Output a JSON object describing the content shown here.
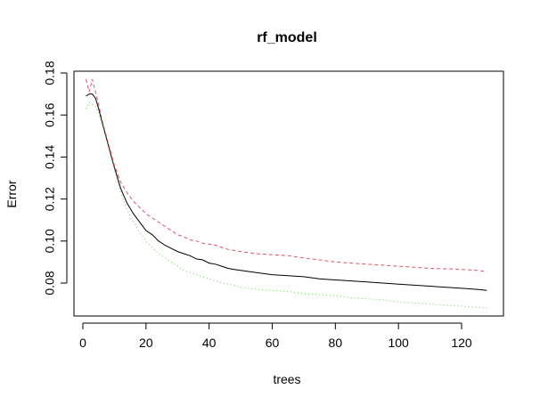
{
  "chart_data": {
    "type": "line",
    "title": "rf_model",
    "xlabel": "trees",
    "ylabel": "Error",
    "xlim": [
      0,
      128
    ],
    "ylim": [
      0.065,
      0.18
    ],
    "x_ticks": [
      0,
      20,
      40,
      60,
      80,
      100,
      120
    ],
    "y_ticks": [
      0.08,
      0.1,
      0.12,
      0.14,
      0.16,
      0.18
    ],
    "y_tick_labels": [
      "0.08",
      "0.10",
      "0.12",
      "0.14",
      "0.16",
      "0.18"
    ],
    "grid": false,
    "legend": "none",
    "series": [
      {
        "line_style": "solid",
        "color": "#000000",
        "points": [
          [
            1,
            0.169
          ],
          [
            2,
            0.17
          ],
          [
            3,
            0.17
          ],
          [
            4,
            0.168
          ],
          [
            5,
            0.163
          ],
          [
            6,
            0.157
          ],
          [
            8,
            0.146
          ],
          [
            10,
            0.135
          ],
          [
            12,
            0.125
          ],
          [
            14,
            0.118
          ],
          [
            16,
            0.113
          ],
          [
            18,
            0.109
          ],
          [
            20,
            0.105
          ],
          [
            22,
            0.103
          ],
          [
            24,
            0.1
          ],
          [
            26,
            0.098
          ],
          [
            28,
            0.0965
          ],
          [
            30,
            0.095
          ],
          [
            32,
            0.094
          ],
          [
            34,
            0.093
          ],
          [
            36,
            0.0915
          ],
          [
            38,
            0.091
          ],
          [
            40,
            0.0895
          ],
          [
            42,
            0.089
          ],
          [
            44,
            0.088
          ],
          [
            46,
            0.087
          ],
          [
            48,
            0.0865
          ],
          [
            50,
            0.086
          ],
          [
            55,
            0.085
          ],
          [
            60,
            0.084
          ],
          [
            65,
            0.0835
          ],
          [
            70,
            0.083
          ],
          [
            75,
            0.082
          ],
          [
            80,
            0.0815
          ],
          [
            85,
            0.081
          ],
          [
            90,
            0.0805
          ],
          [
            95,
            0.08
          ],
          [
            100,
            0.0795
          ],
          [
            105,
            0.079
          ],
          [
            110,
            0.0785
          ],
          [
            115,
            0.078
          ],
          [
            120,
            0.0775
          ],
          [
            125,
            0.077
          ],
          [
            128,
            0.0765
          ]
        ]
      },
      {
        "line_style": "dashed",
        "color": "#df536b",
        "points": [
          [
            1,
            0.177
          ],
          [
            2,
            0.171
          ],
          [
            3,
            0.177
          ],
          [
            4,
            0.171
          ],
          [
            5,
            0.165
          ],
          [
            6,
            0.158
          ],
          [
            8,
            0.147
          ],
          [
            10,
            0.136
          ],
          [
            12,
            0.128
          ],
          [
            14,
            0.123
          ],
          [
            16,
            0.119
          ],
          [
            18,
            0.116
          ],
          [
            20,
            0.113
          ],
          [
            22,
            0.111
          ],
          [
            24,
            0.109
          ],
          [
            26,
            0.107
          ],
          [
            28,
            0.105
          ],
          [
            30,
            0.103
          ],
          [
            32,
            0.102
          ],
          [
            34,
            0.1005
          ],
          [
            36,
            0.1
          ],
          [
            38,
            0.099
          ],
          [
            40,
            0.0985
          ],
          [
            42,
            0.098
          ],
          [
            44,
            0.097
          ],
          [
            46,
            0.096
          ],
          [
            48,
            0.0955
          ],
          [
            50,
            0.095
          ],
          [
            55,
            0.094
          ],
          [
            60,
            0.0935
          ],
          [
            65,
            0.093
          ],
          [
            70,
            0.092
          ],
          [
            75,
            0.091
          ],
          [
            80,
            0.09
          ],
          [
            85,
            0.0895
          ],
          [
            90,
            0.089
          ],
          [
            95,
            0.0885
          ],
          [
            100,
            0.088
          ],
          [
            105,
            0.0875
          ],
          [
            110,
            0.087
          ],
          [
            115,
            0.0868
          ],
          [
            120,
            0.0865
          ],
          [
            125,
            0.086
          ],
          [
            128,
            0.0855
          ]
        ]
      },
      {
        "line_style": "dotted",
        "color": "#61d04f",
        "points": [
          [
            1,
            0.163
          ],
          [
            2,
            0.166
          ],
          [
            3,
            0.165
          ],
          [
            4,
            0.164
          ],
          [
            5,
            0.161
          ],
          [
            6,
            0.156
          ],
          [
            8,
            0.145
          ],
          [
            10,
            0.134
          ],
          [
            12,
            0.123
          ],
          [
            14,
            0.115
          ],
          [
            16,
            0.109
          ],
          [
            18,
            0.104
          ],
          [
            20,
            0.1
          ],
          [
            22,
            0.097
          ],
          [
            24,
            0.094
          ],
          [
            26,
            0.092
          ],
          [
            28,
            0.09
          ],
          [
            30,
            0.088
          ],
          [
            32,
            0.086
          ],
          [
            34,
            0.085
          ],
          [
            36,
            0.084
          ],
          [
            38,
            0.083
          ],
          [
            40,
            0.082
          ],
          [
            42,
            0.081
          ],
          [
            44,
            0.08
          ],
          [
            46,
            0.0795
          ],
          [
            48,
            0.079
          ],
          [
            50,
            0.078
          ],
          [
            55,
            0.077
          ],
          [
            60,
            0.0765
          ],
          [
            65,
            0.076
          ],
          [
            70,
            0.075
          ],
          [
            75,
            0.0745
          ],
          [
            80,
            0.074
          ],
          [
            85,
            0.073
          ],
          [
            90,
            0.0725
          ],
          [
            95,
            0.072
          ],
          [
            100,
            0.071
          ],
          [
            105,
            0.0705
          ],
          [
            110,
            0.07
          ],
          [
            115,
            0.0695
          ],
          [
            120,
            0.069
          ],
          [
            125,
            0.0685
          ],
          [
            128,
            0.068
          ]
        ]
      }
    ]
  }
}
